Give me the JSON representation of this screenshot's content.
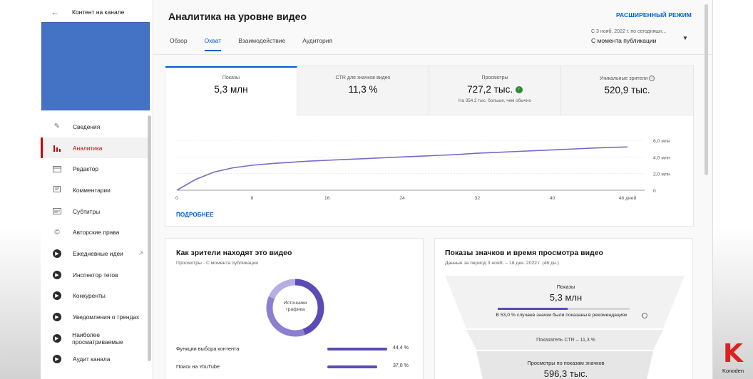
{
  "sidebar": {
    "header": "Контент на канале",
    "items": [
      {
        "label": "Сведения",
        "icon": "pencil-icon"
      },
      {
        "label": "Аналитика",
        "icon": "bar-chart-icon",
        "active": true
      },
      {
        "label": "Редактор",
        "icon": "film-icon"
      },
      {
        "label": "Комментарии",
        "icon": "comment-icon"
      },
      {
        "label": "Субтитры",
        "icon": "subtitles-icon"
      },
      {
        "label": "Авторские права",
        "icon": "copyright-icon"
      },
      {
        "label": "Ежедневные идеи",
        "icon": "extension-icon",
        "external": true
      },
      {
        "label": "Инспектор тегов",
        "icon": "extension-icon"
      },
      {
        "label": "Конкуренты",
        "icon": "extension-icon"
      },
      {
        "label": "Уведомления о трендах",
        "icon": "extension-icon"
      },
      {
        "label": "Наиболее просматриваемые",
        "icon": "extension-icon"
      },
      {
        "label": "Аудит канала",
        "icon": "extension-icon"
      }
    ]
  },
  "header": {
    "title": "Аналитика на уровне видео",
    "advanced_mode": "РАСШИРЕННЫЙ РЕЖИМ",
    "tabs": [
      {
        "label": "Обзор"
      },
      {
        "label": "Охват",
        "active": true
      },
      {
        "label": "Взаимодействие"
      },
      {
        "label": "Аудитория"
      }
    ],
    "date_range_hint": "С 3 нояб. 2022 г. по сегодняшн...",
    "date_range_value": "С момента публикации"
  },
  "metrics": [
    {
      "label": "Показы",
      "value": "5,3 млн",
      "active": true
    },
    {
      "label": "CTR для значков видео",
      "value": "11,3 %"
    },
    {
      "label": "Просмотры",
      "value": "727,2 тыс.",
      "note": "На 354,2 тыс. больше, чем обычно"
    },
    {
      "label": "Уникальные зрители",
      "value": "520,9 тыс."
    }
  ],
  "chart_data": {
    "type": "line",
    "x": [
      0,
      2,
      4,
      6,
      8,
      10,
      12,
      14,
      16,
      18,
      20,
      22,
      24,
      26,
      28,
      30,
      32,
      34,
      36,
      38,
      40,
      42,
      44,
      46,
      48
    ],
    "series": [
      {
        "values": [
          0.0,
          1.3,
          2.2,
          2.7,
          3.0,
          3.2,
          3.35,
          3.5,
          3.6,
          3.7,
          3.8,
          3.9,
          4.0,
          4.1,
          4.2,
          4.3,
          4.45,
          4.55,
          4.65,
          4.75,
          4.85,
          4.95,
          5.05,
          5.15,
          5.2
        ]
      }
    ],
    "x_ticks": [
      "0",
      "8",
      "16",
      "24",
      "32",
      "40",
      "48 дней"
    ],
    "y_ticks": [
      "0",
      "2,0 млн",
      "4,0 млн",
      "6,0 млн"
    ],
    "xlim": [
      0,
      48
    ],
    "ylim": [
      0,
      6
    ],
    "color": "#7b68c8"
  },
  "more_link": "ПОДРОБНЕЕ",
  "traffic": {
    "title": "Как зрители находят это видео",
    "subtitle": "Просмотры · С момента публикации",
    "donut_label": "Источники трафика",
    "rows": [
      {
        "label": "Функции выбора контента",
        "pct": "44,4 %",
        "fraction": 0.444
      },
      {
        "label": "Поиск на YouTube",
        "pct": "37,0 %",
        "fraction": 0.37
      }
    ]
  },
  "funnel": {
    "title": "Показы значков и время просмотра видео",
    "subtitle": "Данные за период 3 нояб. – 18 дек. 2022 г. (46 дн.)",
    "impressions_label": "Показы",
    "impressions_value": "5,3 млн",
    "recommend_note": "В 53,0 % случаев значки были показаны в рекомендациях",
    "recommend_fraction": 0.53,
    "ctr_label": "Показатель CTR – 11,3 %",
    "views_label": "Просмотры по показам значков",
    "views_value": "596,3 тыс."
  },
  "watermark": {
    "logo": "K",
    "name": "Konoden"
  },
  "colors": {
    "accent": "#065fd4",
    "active": "#cc0000",
    "series": "#7b68c8",
    "bars": "#5b4bb7"
  }
}
